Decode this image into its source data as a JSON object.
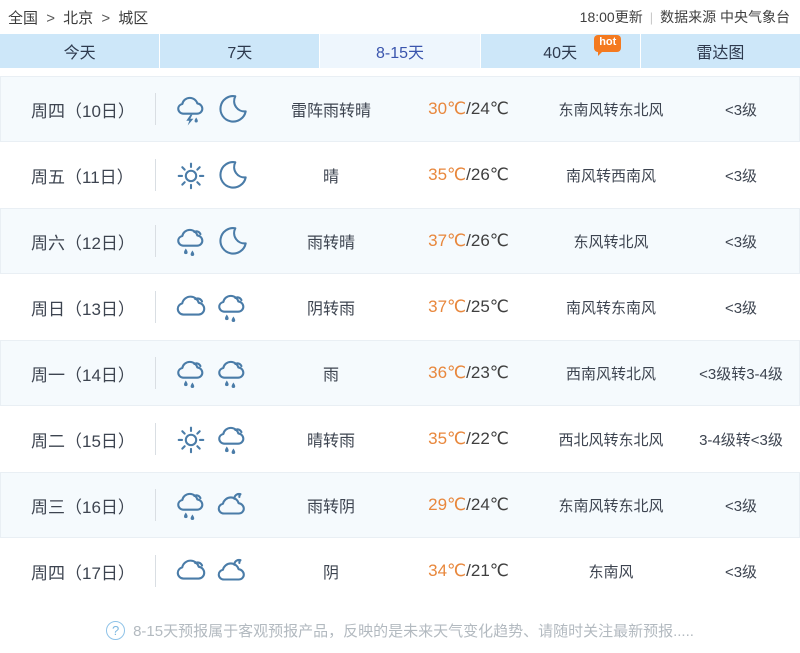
{
  "breadcrumb": {
    "items": [
      "全国",
      "北京",
      "城区"
    ],
    "separator": ">"
  },
  "update_info": {
    "time": "18:00更新",
    "separator": "|",
    "source": "数据来源 中央气象台"
  },
  "tabs": [
    {
      "label": "今天",
      "selected": false
    },
    {
      "label": "7天",
      "selected": false
    },
    {
      "label": "8-15天",
      "selected": true
    },
    {
      "label": "40天",
      "selected": false,
      "badge": "hot"
    },
    {
      "label": "雷达图",
      "selected": false
    }
  ],
  "forecast": {
    "rows": [
      {
        "day": "周四（10日）",
        "icons": [
          "thunder-rain-icon",
          "moon-icon"
        ],
        "weather": "雷阵雨转晴",
        "high": "30℃",
        "low": "/24℃",
        "wind": "东南风转东北风",
        "level": "<3级"
      },
      {
        "day": "周五（11日）",
        "icons": [
          "sun-icon",
          "moon-icon"
        ],
        "weather": "晴",
        "high": "35℃",
        "low": "/26℃",
        "wind": "南风转西南风",
        "level": "<3级"
      },
      {
        "day": "周六（12日）",
        "icons": [
          "rain-icon",
          "moon-icon"
        ],
        "weather": "雨转晴",
        "high": "37℃",
        "low": "/26℃",
        "wind": "东风转北风",
        "level": "<3级"
      },
      {
        "day": "周日（13日）",
        "icons": [
          "cloud-icon",
          "rain-icon"
        ],
        "weather": "阴转雨",
        "high": "37℃",
        "low": "/25℃",
        "wind": "南风转东南风",
        "level": "<3级"
      },
      {
        "day": "周一（14日）",
        "icons": [
          "rain-icon",
          "rain-icon"
        ],
        "weather": "雨",
        "high": "36℃",
        "low": "/23℃",
        "wind": "西南风转北风",
        "level": "<3级转3-4级"
      },
      {
        "day": "周二（15日）",
        "icons": [
          "sun-icon",
          "rain-icon"
        ],
        "weather": "晴转雨",
        "high": "35℃",
        "low": "/22℃",
        "wind": "西北风转东北风",
        "level": "3-4级转<3级"
      },
      {
        "day": "周三（16日）",
        "icons": [
          "rain-icon",
          "overcast-icon"
        ],
        "weather": "雨转阴",
        "high": "29℃",
        "low": "/24℃",
        "wind": "东南风转东北风",
        "level": "<3级"
      },
      {
        "day": "周四（17日）",
        "icons": [
          "cloud-icon",
          "overcast-icon"
        ],
        "weather": "阴",
        "high": "34℃",
        "low": "/21℃",
        "wind": "东南风",
        "level": "<3级"
      }
    ]
  },
  "footer": {
    "icon": "question-icon",
    "text": "8-15天预报属于客观预报产品，反映的是未来天气变化趋势、请随时关注最新预报....."
  },
  "colors": {
    "accent_orange": "#e8873c",
    "icon_blue": "#4a7ca8",
    "tab_bg": "#cde7f9",
    "tab_selected_bg": "#eef6fd",
    "tab_selected_text": "#3a55ad",
    "hot_badge": "#f47a20",
    "row_alt_bg": "#f5fafd",
    "row_border": "#e9eff4"
  }
}
